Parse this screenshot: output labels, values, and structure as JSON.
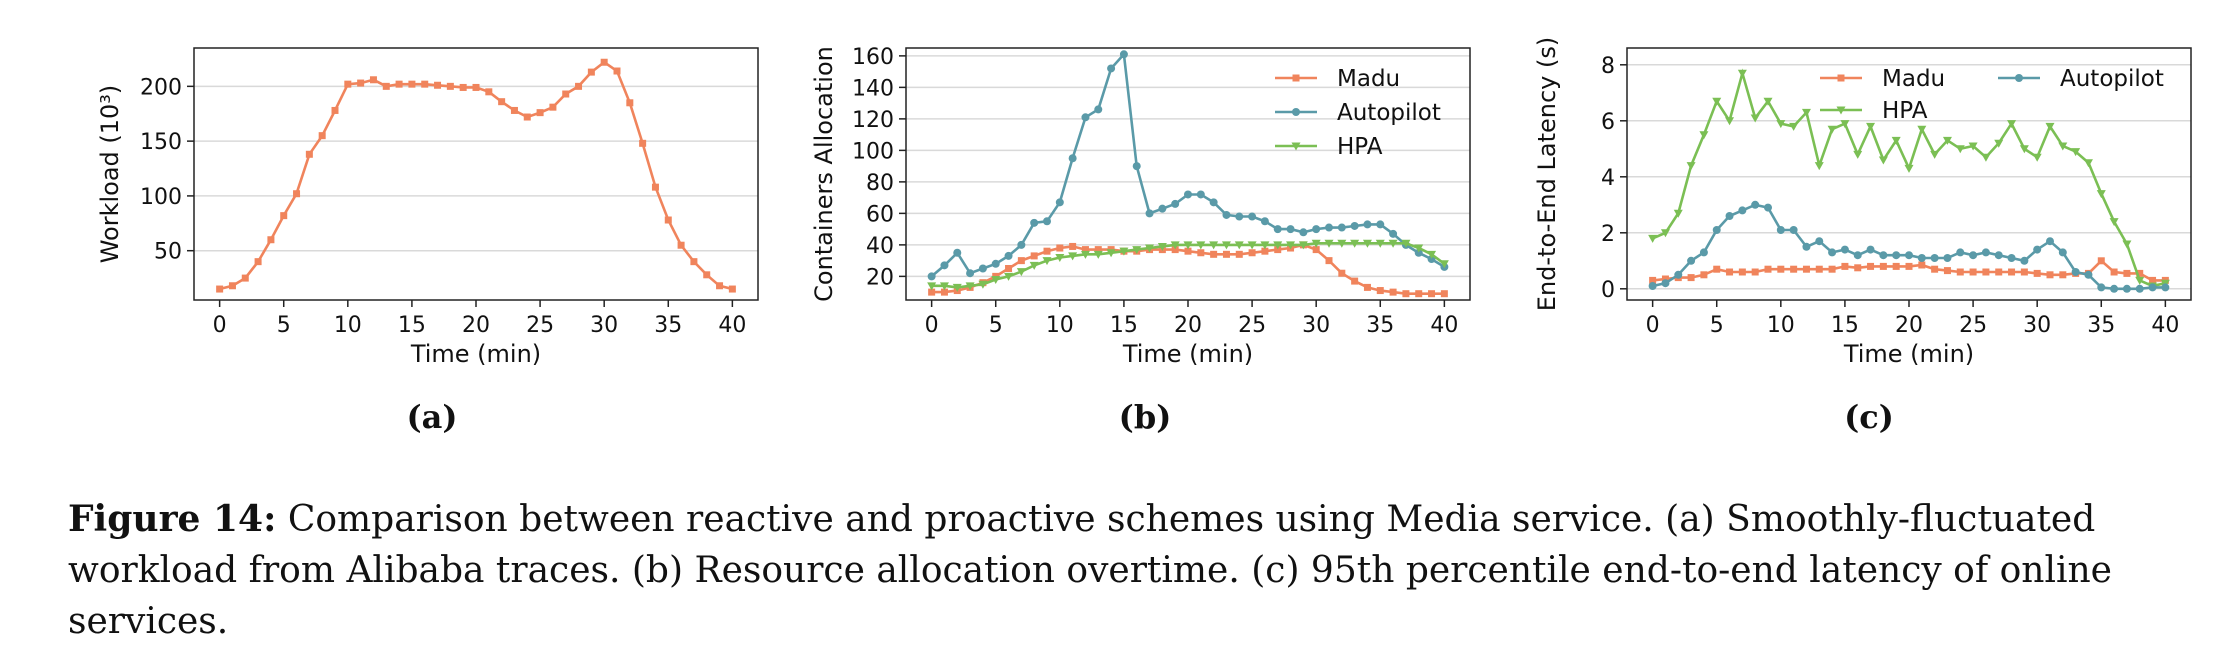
{
  "figure": {
    "caption_label": "Figure 14:",
    "caption_text": " Comparison between reactive and proactive schemes using Media service. (a) Smoothly-fluctuated workload from Alibaba traces. (b) Resource allocation overtime. (c) 95th percentile end-to-end latency of online services.",
    "subcaptions": [
      "(a)",
      "(b)",
      "(c)"
    ]
  },
  "colors": {
    "madu": "#f0845c",
    "autopilot": "#5a9aa8",
    "hpa": "#7bbf54",
    "grid": "#d9d9d9"
  },
  "chart_data": [
    {
      "type": "line",
      "xlabel": "Time (min)",
      "ylabel": "Workload (10³)",
      "xlim": [
        -2,
        42
      ],
      "ylim": [
        5,
        235
      ],
      "xticks": [
        0,
        5,
        10,
        15,
        20,
        25,
        30,
        35,
        40
      ],
      "yticks": [
        50,
        100,
        150,
        200
      ],
      "legend": "none",
      "series": [
        {
          "color_key": "madu",
          "marker": "square",
          "x": [
            0,
            1,
            2,
            3,
            4,
            5,
            6,
            7,
            8,
            9,
            10,
            11,
            12,
            13,
            14,
            15,
            16,
            17,
            18,
            19,
            20,
            21,
            22,
            23,
            24,
            25,
            26,
            27,
            28,
            29,
            30,
            31,
            32,
            33,
            34,
            35,
            36,
            37,
            38,
            39,
            40
          ],
          "values": [
            15,
            18,
            25,
            40,
            60,
            82,
            102,
            138,
            155,
            178,
            202,
            203,
            206,
            200,
            202,
            202,
            202,
            201,
            200,
            199,
            199,
            195,
            186,
            178,
            172,
            176,
            181,
            193,
            200,
            213,
            222,
            214,
            185,
            148,
            108,
            78,
            55,
            40,
            28,
            18,
            15
          ]
        }
      ]
    },
    {
      "type": "line",
      "xlabel": "Time (min)",
      "ylabel": "Containers Allocation",
      "xlim": [
        -2,
        42
      ],
      "ylim": [
        5,
        165
      ],
      "xticks": [
        0,
        5,
        10,
        15,
        20,
        25,
        30,
        35,
        40
      ],
      "yticks": [
        20,
        40,
        60,
        80,
        100,
        120,
        140,
        160
      ],
      "legend": "top-right",
      "series": [
        {
          "name": "Madu",
          "color_key": "madu",
          "marker": "square",
          "x": [
            0,
            1,
            2,
            3,
            4,
            5,
            6,
            7,
            8,
            9,
            10,
            11,
            12,
            13,
            14,
            15,
            16,
            17,
            18,
            19,
            20,
            21,
            22,
            23,
            24,
            25,
            26,
            27,
            28,
            29,
            30,
            31,
            32,
            33,
            34,
            35,
            36,
            37,
            38,
            39,
            40
          ],
          "values": [
            10,
            10,
            11,
            13,
            16,
            20,
            25,
            30,
            33,
            36,
            38,
            39,
            37,
            37,
            37,
            36,
            36,
            37,
            37,
            37,
            36,
            35,
            34,
            34,
            34,
            35,
            36,
            37,
            38,
            40,
            37,
            30,
            22,
            17,
            13,
            11,
            10,
            9,
            9,
            9,
            9
          ]
        },
        {
          "name": "Autopilot",
          "color_key": "autopilot",
          "marker": "circle",
          "x": [
            0,
            1,
            2,
            3,
            4,
            5,
            6,
            7,
            8,
            9,
            10,
            11,
            12,
            13,
            14,
            15,
            16,
            17,
            18,
            19,
            20,
            21,
            22,
            23,
            24,
            25,
            26,
            27,
            28,
            29,
            30,
            31,
            32,
            33,
            34,
            35,
            36,
            37,
            38,
            39,
            40
          ],
          "values": [
            20,
            27,
            35,
            22,
            25,
            28,
            33,
            40,
            54,
            55,
            67,
            95,
            121,
            126,
            152,
            161,
            90,
            60,
            63,
            66,
            72,
            72,
            67,
            59,
            58,
            58,
            55,
            50,
            50,
            48,
            50,
            51,
            51,
            52,
            53,
            53,
            47,
            40,
            35,
            31,
            26
          ]
        },
        {
          "name": "HPA",
          "color_key": "hpa",
          "marker": "triangle-down",
          "x": [
            0,
            1,
            2,
            3,
            4,
            5,
            6,
            7,
            8,
            9,
            10,
            11,
            12,
            13,
            14,
            15,
            16,
            17,
            18,
            19,
            20,
            21,
            22,
            23,
            24,
            25,
            26,
            27,
            28,
            29,
            30,
            31,
            32,
            33,
            34,
            35,
            36,
            37,
            38,
            39,
            40
          ],
          "values": [
            14,
            14,
            13,
            14,
            15,
            18,
            20,
            23,
            27,
            30,
            32,
            33,
            34,
            34,
            35,
            36,
            37,
            38,
            39,
            40,
            40,
            40,
            40,
            40,
            40,
            40,
            40,
            40,
            40,
            40,
            41,
            41,
            41,
            41,
            41,
            41,
            41,
            41,
            38,
            34,
            28
          ]
        }
      ]
    },
    {
      "type": "line",
      "xlabel": "Time (min)",
      "ylabel": "End-to-End Latency (s)",
      "xlim": [
        -2,
        42
      ],
      "ylim": [
        -0.4,
        8.6
      ],
      "xticks": [
        0,
        5,
        10,
        15,
        20,
        25,
        30,
        35,
        40
      ],
      "yticks": [
        0,
        2,
        4,
        6,
        8
      ],
      "legend": "top-right",
      "series": [
        {
          "name": "Madu",
          "color_key": "madu",
          "marker": "square",
          "x": [
            0,
            1,
            2,
            3,
            4,
            5,
            6,
            7,
            8,
            9,
            10,
            11,
            12,
            13,
            14,
            15,
            16,
            17,
            18,
            19,
            20,
            21,
            22,
            23,
            24,
            25,
            26,
            27,
            28,
            29,
            30,
            31,
            32,
            33,
            34,
            35,
            36,
            37,
            38,
            39,
            40
          ],
          "values": [
            0.3,
            0.35,
            0.4,
            0.4,
            0.5,
            0.7,
            0.6,
            0.6,
            0.6,
            0.7,
            0.7,
            0.7,
            0.7,
            0.7,
            0.7,
            0.8,
            0.75,
            0.8,
            0.8,
            0.8,
            0.8,
            0.85,
            0.7,
            0.65,
            0.6,
            0.6,
            0.6,
            0.6,
            0.6,
            0.6,
            0.55,
            0.5,
            0.5,
            0.55,
            0.55,
            1.0,
            0.6,
            0.55,
            0.55,
            0.3,
            0.3
          ]
        },
        {
          "name": "HPA",
          "color_key": "hpa",
          "marker": "triangle-down",
          "x": [
            0,
            1,
            2,
            3,
            4,
            5,
            6,
            7,
            8,
            9,
            10,
            11,
            12,
            13,
            14,
            15,
            16,
            17,
            18,
            19,
            20,
            21,
            22,
            23,
            24,
            25,
            26,
            27,
            28,
            29,
            30,
            31,
            32,
            33,
            34,
            35,
            36,
            37,
            38,
            39,
            40
          ],
          "values": [
            1.8,
            2.0,
            2.7,
            4.4,
            5.5,
            6.7,
            6.0,
            7.7,
            6.1,
            6.7,
            5.9,
            5.8,
            6.3,
            4.4,
            5.7,
            5.9,
            4.8,
            5.8,
            4.6,
            5.3,
            4.3,
            5.7,
            4.8,
            5.3,
            5.0,
            5.1,
            4.7,
            5.2,
            5.9,
            5.0,
            4.7,
            5.8,
            5.1,
            4.9,
            4.5,
            3.4,
            2.4,
            1.6,
            0.3,
            0.1,
            0.2
          ]
        },
        {
          "name": "Autopilot",
          "color_key": "autopilot",
          "marker": "circle",
          "x": [
            0,
            1,
            2,
            3,
            4,
            5,
            6,
            7,
            8,
            9,
            10,
            11,
            12,
            13,
            14,
            15,
            16,
            17,
            18,
            19,
            20,
            21,
            22,
            23,
            24,
            25,
            26,
            27,
            28,
            29,
            30,
            31,
            32,
            33,
            34,
            35,
            36,
            37,
            38,
            39,
            40
          ],
          "values": [
            0.1,
            0.2,
            0.5,
            1.0,
            1.3,
            2.1,
            2.6,
            2.8,
            3.0,
            2.9,
            2.1,
            2.1,
            1.5,
            1.7,
            1.3,
            1.4,
            1.2,
            1.4,
            1.2,
            1.2,
            1.2,
            1.1,
            1.1,
            1.1,
            1.3,
            1.2,
            1.3,
            1.2,
            1.1,
            1.0,
            1.4,
            1.7,
            1.3,
            0.6,
            0.5,
            0.05,
            0.0,
            0.0,
            0.0,
            0.05,
            0.05
          ]
        }
      ]
    }
  ]
}
